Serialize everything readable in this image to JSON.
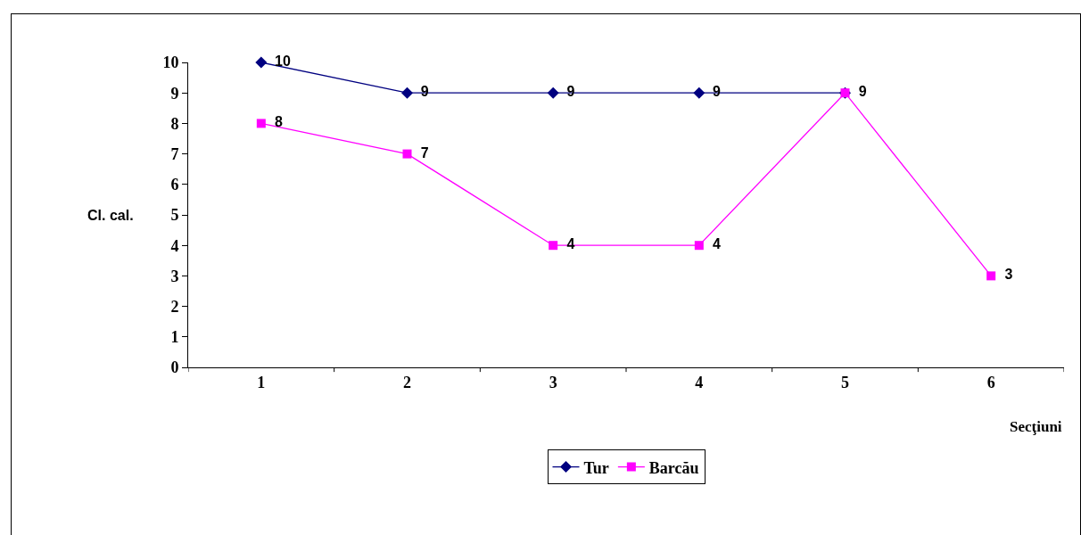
{
  "chart_data": {
    "type": "line",
    "ylabel": "Cl. cal.",
    "xlabel": "Secţiuni",
    "categories": [
      "1",
      "2",
      "3",
      "4",
      "5",
      "6"
    ],
    "series": [
      {
        "name": "Tur",
        "color": "#000080",
        "marker": "diamond",
        "values": [
          10,
          9,
          9,
          9,
          9,
          null
        ],
        "value_labels": [
          "10",
          "9",
          "9",
          "9",
          "9",
          null
        ]
      },
      {
        "name": "Barcău",
        "color": "#ff00ff",
        "marker": "square",
        "values": [
          8,
          7,
          4,
          4,
          9,
          3
        ],
        "value_labels": [
          "8",
          "7",
          "4",
          "4",
          null,
          "3"
        ]
      }
    ],
    "ylim": [
      0,
      10
    ],
    "yticks": [
      0,
      1,
      2,
      3,
      4,
      5,
      6,
      7,
      8,
      9,
      10
    ],
    "grid": false,
    "legend": "bottom",
    "line_style": "solid"
  }
}
